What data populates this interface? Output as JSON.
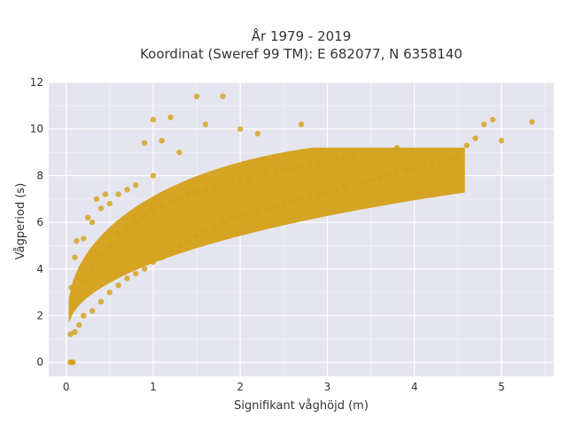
{
  "chart_data": {
    "type": "scatter",
    "title_line1": "År 1979 - 2019",
    "title_line2": "Koordinat (Sweref 99 TM): E 682077, N 6358140",
    "xlabel": "Signifikant våghöjd (m)",
    "ylabel": "Vågperiod (s)",
    "xlim": [
      -0.2,
      5.6
    ],
    "ylim": [
      -0.6,
      12
    ],
    "xticks": [
      "0",
      "1",
      "2",
      "3",
      "4",
      "5"
    ],
    "yticks": [
      "0",
      "2",
      "4",
      "6",
      "8",
      "10",
      "12"
    ],
    "grid": true,
    "marker_color": "#D4A017",
    "background_color": "#E5E5EF",
    "series": [
      {
        "values": [
          [
            0.05,
            0
          ],
          [
            0.08,
            0
          ],
          [
            0.06,
            0
          ],
          [
            0.05,
            1.2
          ],
          [
            0.1,
            1.3
          ],
          [
            0.08,
            2.4
          ],
          [
            0.06,
            3.2
          ],
          [
            0.1,
            4.5
          ],
          [
            0.12,
            5.2
          ],
          [
            0.15,
            1.6
          ],
          [
            0.2,
            2.0
          ],
          [
            0.2,
            3.5
          ],
          [
            0.2,
            5.3
          ],
          [
            0.25,
            6.2
          ],
          [
            0.3,
            2.2
          ],
          [
            0.3,
            4.0
          ],
          [
            0.3,
            6.0
          ],
          [
            0.35,
            7.0
          ],
          [
            0.4,
            2.6
          ],
          [
            0.4,
            4.6
          ],
          [
            0.4,
            6.6
          ],
          [
            0.45,
            7.2
          ],
          [
            0.5,
            3.0
          ],
          [
            0.5,
            5.0
          ],
          [
            0.5,
            6.8
          ],
          [
            0.6,
            3.3
          ],
          [
            0.6,
            5.5
          ],
          [
            0.6,
            7.2
          ],
          [
            0.7,
            3.6
          ],
          [
            0.7,
            5.8
          ],
          [
            0.7,
            7.4
          ],
          [
            0.8,
            3.8
          ],
          [
            0.8,
            6.0
          ],
          [
            0.8,
            7.6
          ],
          [
            0.9,
            4.0
          ],
          [
            0.9,
            6.3
          ],
          [
            0.9,
            9.4
          ],
          [
            1.0,
            4.3
          ],
          [
            1.0,
            6.5
          ],
          [
            1.0,
            8.0
          ],
          [
            1.0,
            10.4
          ],
          [
            1.1,
            4.5
          ],
          [
            1.1,
            6.7
          ],
          [
            1.1,
            9.5
          ],
          [
            1.2,
            4.8
          ],
          [
            1.2,
            6.9
          ],
          [
            1.2,
            10.5
          ],
          [
            1.3,
            5.0
          ],
          [
            1.3,
            7.0
          ],
          [
            1.3,
            9.0
          ],
          [
            1.4,
            5.2
          ],
          [
            1.4,
            7.2
          ],
          [
            1.5,
            5.4
          ],
          [
            1.5,
            7.3
          ],
          [
            1.5,
            11.4
          ],
          [
            1.6,
            5.6
          ],
          [
            1.6,
            7.4
          ],
          [
            1.6,
            10.2
          ],
          [
            1.7,
            5.8
          ],
          [
            1.7,
            7.5
          ],
          [
            1.8,
            6.0
          ],
          [
            1.8,
            7.6
          ],
          [
            1.8,
            11.4
          ],
          [
            1.9,
            6.2
          ],
          [
            1.9,
            7.7
          ],
          [
            2.0,
            6.3
          ],
          [
            2.0,
            7.8
          ],
          [
            2.0,
            10.0
          ],
          [
            2.1,
            6.4
          ],
          [
            2.1,
            7.9
          ],
          [
            2.2,
            6.5
          ],
          [
            2.2,
            8.0
          ],
          [
            2.2,
            9.8
          ],
          [
            2.3,
            6.6
          ],
          [
            2.3,
            8.1
          ],
          [
            2.4,
            6.7
          ],
          [
            2.4,
            8.2
          ],
          [
            2.5,
            6.8
          ],
          [
            2.5,
            8.3
          ],
          [
            2.6,
            6.9
          ],
          [
            2.6,
            8.3
          ],
          [
            2.7,
            7.0
          ],
          [
            2.7,
            8.4
          ],
          [
            2.7,
            10.2
          ],
          [
            2.8,
            7.1
          ],
          [
            2.8,
            8.5
          ],
          [
            2.9,
            7.2
          ],
          [
            2.9,
            8.5
          ],
          [
            3.0,
            7.3
          ],
          [
            3.0,
            8.6
          ],
          [
            3.1,
            7.4
          ],
          [
            3.1,
            8.7
          ],
          [
            3.2,
            7.5
          ],
          [
            3.2,
            8.8
          ],
          [
            3.3,
            7.6
          ],
          [
            3.3,
            8.8
          ],
          [
            3.4,
            7.7
          ],
          [
            3.5,
            7.8
          ],
          [
            3.5,
            8.9
          ],
          [
            3.6,
            7.9
          ],
          [
            3.7,
            8.0
          ],
          [
            3.8,
            8.1
          ],
          [
            3.8,
            9.2
          ],
          [
            3.9,
            8.2
          ],
          [
            4.0,
            8.3
          ],
          [
            4.1,
            8.4
          ],
          [
            4.2,
            8.5
          ],
          [
            4.3,
            8.6
          ],
          [
            4.4,
            8.7
          ],
          [
            4.5,
            8.8
          ],
          [
            4.6,
            9.3
          ],
          [
            4.7,
            9.6
          ],
          [
            4.8,
            10.2
          ],
          [
            4.9,
            10.4
          ],
          [
            5.0,
            9.5
          ],
          [
            5.35,
            10.3
          ]
        ]
      }
    ]
  }
}
